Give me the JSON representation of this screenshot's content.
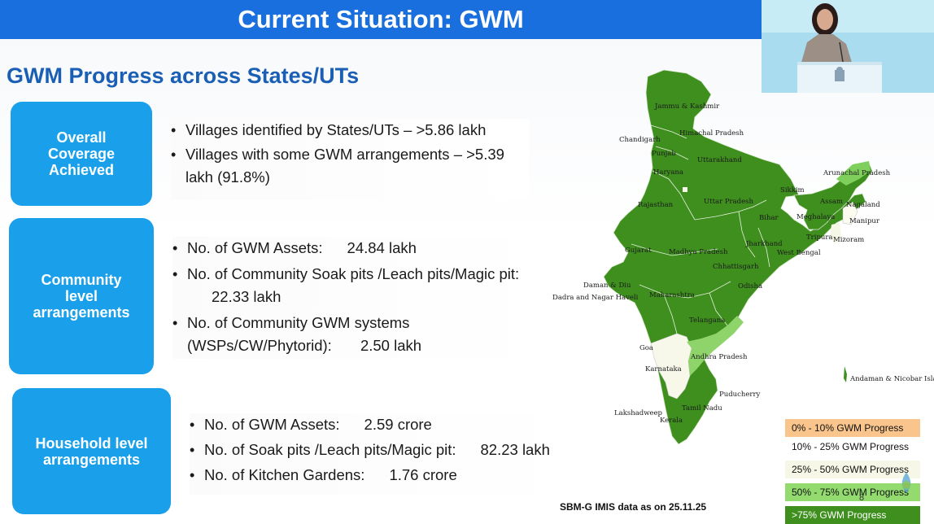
{
  "slide": {
    "title": "Current Situation: GWM",
    "subtitle": "GWM Progress across States/UTs",
    "sections": [
      {
        "heading": "Overall Coverage Achieved",
        "bullets": [
          {
            "text": "Villages identified by States/UTs – >5.86 lakh"
          },
          {
            "text": "Villages with some GWM arrangements – >5.39 lakh (91.8%)"
          }
        ]
      },
      {
        "heading": "Community level arrangements",
        "bullets": [
          {
            "label": "No. of GWM Assets:",
            "value": "24.84 lakh"
          },
          {
            "label": "No. of Community Soak pits /Leach pits/Magic pit:",
            "value": "22.33 lakh"
          },
          {
            "label": "No. of Community GWM systems (WSPs/CW/Phytorid):",
            "value": "2.50 lakh"
          }
        ]
      },
      {
        "heading": "Household level arrangements",
        "bullets": [
          {
            "label": "No. of GWM Assets:",
            "value": "2.59 crore"
          },
          {
            "label": "No. of Soak pits /Leach pits/Magic pit:",
            "value": "82.23 lakh"
          },
          {
            "label": "No. of Kitchen Gardens:",
            "value": "1.76 crore"
          }
        ]
      }
    ],
    "source_note": "SBM-G IMIS data as on 25.11.25",
    "page_number": "8"
  },
  "map": {
    "labels": [
      "Jammu & Kashmir",
      "Himachal Pradesh",
      "Chandigarh",
      "Punjab",
      "Uttarakhand",
      "Haryana",
      "Arunachal Pradesh",
      "Sikkim",
      "Uttar Pradesh",
      "Assam",
      "Nagaland",
      "Rajasthan",
      "Bihar",
      "Meghalaya",
      "Manipur",
      "Tripura",
      "Mizoram",
      "Jharkhand",
      "Gujarat",
      "Madhya Pradesh",
      "West Bengal",
      "Chhattisgarh",
      "Daman & Diu",
      "Dadra and Nagar Haveli",
      "Odisha",
      "Maharashtra",
      "Telangana",
      "Goa",
      "Andhra Pradesh",
      "Karnataka",
      "Andaman & Nicobar Islands",
      "Puducherry",
      "Tamil Nadu",
      "Lakshadweep",
      "Kerala"
    ],
    "colors": {
      "gt75": "#3f8f1f",
      "50to75": "#8fd46a",
      "25to50": "#f7f8ea",
      "10to25": "#fbfbf1",
      "0to10": "#f5c68e"
    }
  },
  "legend": [
    {
      "label": "0% - 10% GWM Progress",
      "color": "#f9c58c"
    },
    {
      "label": "10% - 25% GWM Progress",
      "color": "#ffffff"
    },
    {
      "label": "25% - 50% GWM Progress",
      "color": "#f6f7e6"
    },
    {
      "label": "50% - 75% GWM Progress",
      "color": "#93db6f"
    },
    {
      "label": ">75% GWM Progress",
      "color": "#3f8f1f"
    }
  ]
}
